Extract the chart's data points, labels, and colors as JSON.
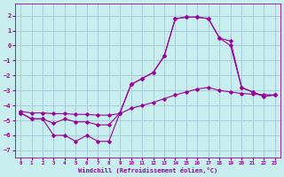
{
  "bg_color": "#c8eef0",
  "grid_color": "#a8ccd8",
  "line_color": "#990099",
  "xlim": [
    -0.5,
    23.5
  ],
  "ylim": [
    -7.5,
    2.8
  ],
  "xticks": [
    0,
    1,
    2,
    3,
    4,
    5,
    6,
    7,
    8,
    9,
    10,
    11,
    12,
    13,
    14,
    15,
    16,
    17,
    18,
    19,
    20,
    21,
    22,
    23
  ],
  "yticks": [
    -7,
    -6,
    -5,
    -4,
    -3,
    -2,
    -1,
    0,
    1,
    2
  ],
  "xlabel": "Windchill (Refroidissement éolien,°C)",
  "curve1_x": [
    0,
    1,
    2,
    3,
    4,
    5,
    6,
    7,
    8,
    9,
    10,
    11,
    12,
    13,
    14,
    15,
    16,
    17,
    18,
    19,
    20,
    21,
    22,
    23
  ],
  "curve1_y": [
    -4.5,
    -4.9,
    -4.9,
    -6.0,
    -6.0,
    -6.4,
    -6.0,
    -6.4,
    -6.4,
    -4.5,
    -2.6,
    -2.2,
    -1.8,
    -0.7,
    1.8,
    1.9,
    1.9,
    1.8,
    0.5,
    0.0,
    -2.8,
    -3.1,
    -3.4,
    -3.3
  ],
  "curve2_x": [
    0,
    1,
    2,
    3,
    4,
    5,
    6,
    7,
    8,
    9,
    10,
    11,
    12,
    13,
    14,
    15,
    16,
    17,
    18,
    19,
    20,
    21,
    22,
    23
  ],
  "curve2_y": [
    -4.5,
    -4.9,
    -4.9,
    -5.2,
    -4.9,
    -5.1,
    -5.1,
    -5.3,
    -5.3,
    -4.5,
    -2.6,
    -2.2,
    -1.8,
    -0.7,
    1.8,
    1.9,
    1.9,
    1.8,
    0.5,
    0.3,
    -2.8,
    -3.1,
    -3.4,
    -3.3
  ],
  "curve3_x": [
    0,
    1,
    2,
    3,
    4,
    5,
    6,
    7,
    8,
    9,
    10,
    11,
    12,
    13,
    14,
    15,
    16,
    17,
    18,
    19,
    20,
    21,
    22,
    23
  ],
  "curve3_y": [
    -4.4,
    -4.5,
    -4.5,
    -4.55,
    -4.55,
    -4.6,
    -4.6,
    -4.65,
    -4.65,
    -4.55,
    -4.2,
    -4.0,
    -3.8,
    -3.55,
    -3.3,
    -3.1,
    -2.9,
    -2.8,
    -3.0,
    -3.1,
    -3.2,
    -3.25,
    -3.28,
    -3.3
  ]
}
